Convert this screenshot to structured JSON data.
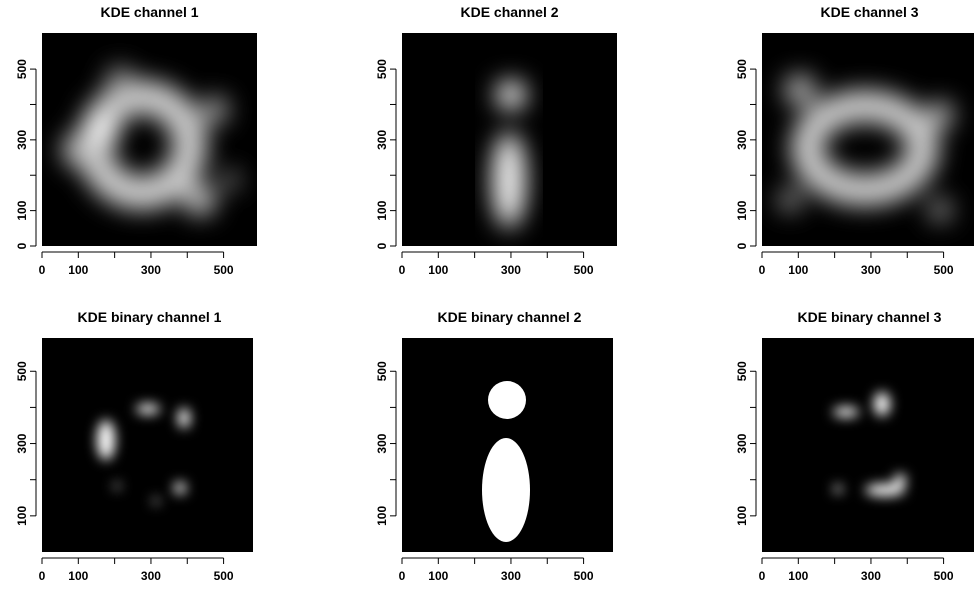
{
  "chart_data": [
    {
      "type": "image",
      "title": "KDE channel 1",
      "xlim": [
        0,
        592
      ],
      "ylim": [
        0,
        602
      ],
      "xticks": [
        0,
        100,
        {
          "value": 200,
          "label": null
        },
        300,
        {
          "value": 400,
          "label": null
        },
        500
      ],
      "yticks": [
        0,
        100,
        {
          "value": 200,
          "label": null
        },
        300,
        {
          "value": 400,
          "label": null
        },
        500
      ]
    },
    {
      "type": "image",
      "title": "KDE channel 2",
      "xlim": [
        0,
        592
      ],
      "ylim": [
        0,
        602
      ],
      "xticks": [
        0,
        100,
        {
          "value": 200,
          "label": null
        },
        300,
        {
          "value": 400,
          "label": null
        },
        500
      ],
      "yticks": [
        0,
        100,
        {
          "value": 200,
          "label": null
        },
        300,
        {
          "value": 400,
          "label": null
        },
        500
      ]
    },
    {
      "type": "image",
      "title": "KDE channel 3",
      "xlim": [
        0,
        592
      ],
      "ylim": [
        0,
        602
      ],
      "xticks": [
        0,
        100,
        {
          "value": 200,
          "label": null
        },
        300,
        {
          "value": 400,
          "label": null
        },
        500
      ],
      "yticks": [
        0,
        100,
        {
          "value": 200,
          "label": null
        },
        300,
        {
          "value": 400,
          "label": null
        },
        500
      ]
    },
    {
      "type": "image",
      "title": "KDE binary channel 1",
      "xlim": [
        0,
        592
      ],
      "ylim": [
        0,
        592
      ],
      "xticks": [
        0,
        100,
        {
          "value": 200,
          "label": null
        },
        300,
        {
          "value": 400,
          "label": null
        },
        500
      ],
      "yticks": [
        100,
        {
          "value": 200,
          "label": null
        },
        300,
        {
          "value": 400,
          "label": null
        },
        500
      ]
    },
    {
      "type": "image",
      "title": "KDE binary channel 2",
      "xlim": [
        0,
        592
      ],
      "ylim": [
        0,
        592
      ],
      "xticks": [
        0,
        100,
        {
          "value": 200,
          "label": null
        },
        300,
        {
          "value": 400,
          "label": null
        },
        500
      ],
      "yticks": [
        100,
        {
          "value": 200,
          "label": null
        },
        300,
        {
          "value": 400,
          "label": null
        },
        500
      ]
    },
    {
      "type": "image",
      "title": "KDE binary channel 3",
      "xlim": [
        0,
        592
      ],
      "ylim": [
        0,
        592
      ],
      "xticks": [
        0,
        100,
        {
          "value": 200,
          "label": null
        },
        300,
        {
          "value": 400,
          "label": null
        },
        500
      ],
      "yticks": [
        100,
        {
          "value": 200,
          "label": null
        },
        300,
        {
          "value": 400,
          "label": null
        },
        500
      ]
    }
  ]
}
